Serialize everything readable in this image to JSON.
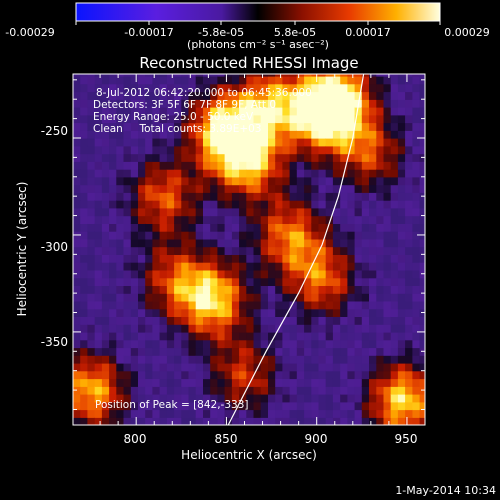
{
  "chart_data": {
    "type": "heatmap",
    "title": "Reconstructed RHESSI Image",
    "xlabel": "Heliocentric X (arcsec)",
    "ylabel": "Heliocentric Y (arcsec)",
    "xlim": [
      765,
      960
    ],
    "ylim": [
      -398,
      -217
    ],
    "x_ticks": [
      800,
      850,
      900,
      950
    ],
    "y_ticks": [
      -250,
      -300,
      -350
    ],
    "colorbar": {
      "label": "(photons cm⁻² s⁻¹ asec⁻²)",
      "range": [
        -0.00029,
        0.00029
      ],
      "tick_labels": [
        "-0.00029",
        "-0.00017",
        "-5.8e-05",
        "5.8e-05",
        "0.00017",
        "0.00029"
      ]
    },
    "annotations": [
      "8-Jul-2012 06:42:20.000 to 06:45:36.000",
      "Detectors: 3F 5F 6F 7F 8F 9F, Att 0",
      "Energy Range: 25.0 - 50.0 keV",
      "Clean     Total counts: 3.89E+03"
    ],
    "peak_label": "Position of Peak = [842,-333]",
    "peak": [
      842,
      -333
    ],
    "bright_regions": [
      {
        "x": 848,
        "y": -245,
        "level": 1.0
      },
      {
        "x": 862,
        "y": -262,
        "level": 0.9
      },
      {
        "x": 875,
        "y": -232,
        "level": 0.8
      },
      {
        "x": 905,
        "y": -238,
        "level": 0.95
      },
      {
        "x": 912,
        "y": -228,
        "level": 0.8
      },
      {
        "x": 842,
        "y": -333,
        "level": 1.0
      },
      {
        "x": 885,
        "y": -300,
        "level": 0.75
      },
      {
        "x": 903,
        "y": -323,
        "level": 0.7
      },
      {
        "x": 815,
        "y": -280,
        "level": 0.7
      },
      {
        "x": 930,
        "y": -258,
        "level": 0.6
      },
      {
        "x": 948,
        "y": -385,
        "level": 1.0
      },
      {
        "x": 775,
        "y": -380,
        "level": 0.9
      },
      {
        "x": 860,
        "y": -372,
        "level": 0.6
      },
      {
        "x": 820,
        "y": -322,
        "level": 0.55
      }
    ],
    "limb_curve": [
      [
        851,
        -398
      ],
      [
        872,
        -360
      ],
      [
        890,
        -330
      ],
      [
        903,
        -305
      ],
      [
        912,
        -280
      ],
      [
        920,
        -250
      ],
      [
        926,
        -217
      ]
    ],
    "grid": false
  },
  "footer": {
    "date": "1-May-2014 10:34"
  },
  "colors": {
    "background": "#000000",
    "text": "#ffffff"
  }
}
